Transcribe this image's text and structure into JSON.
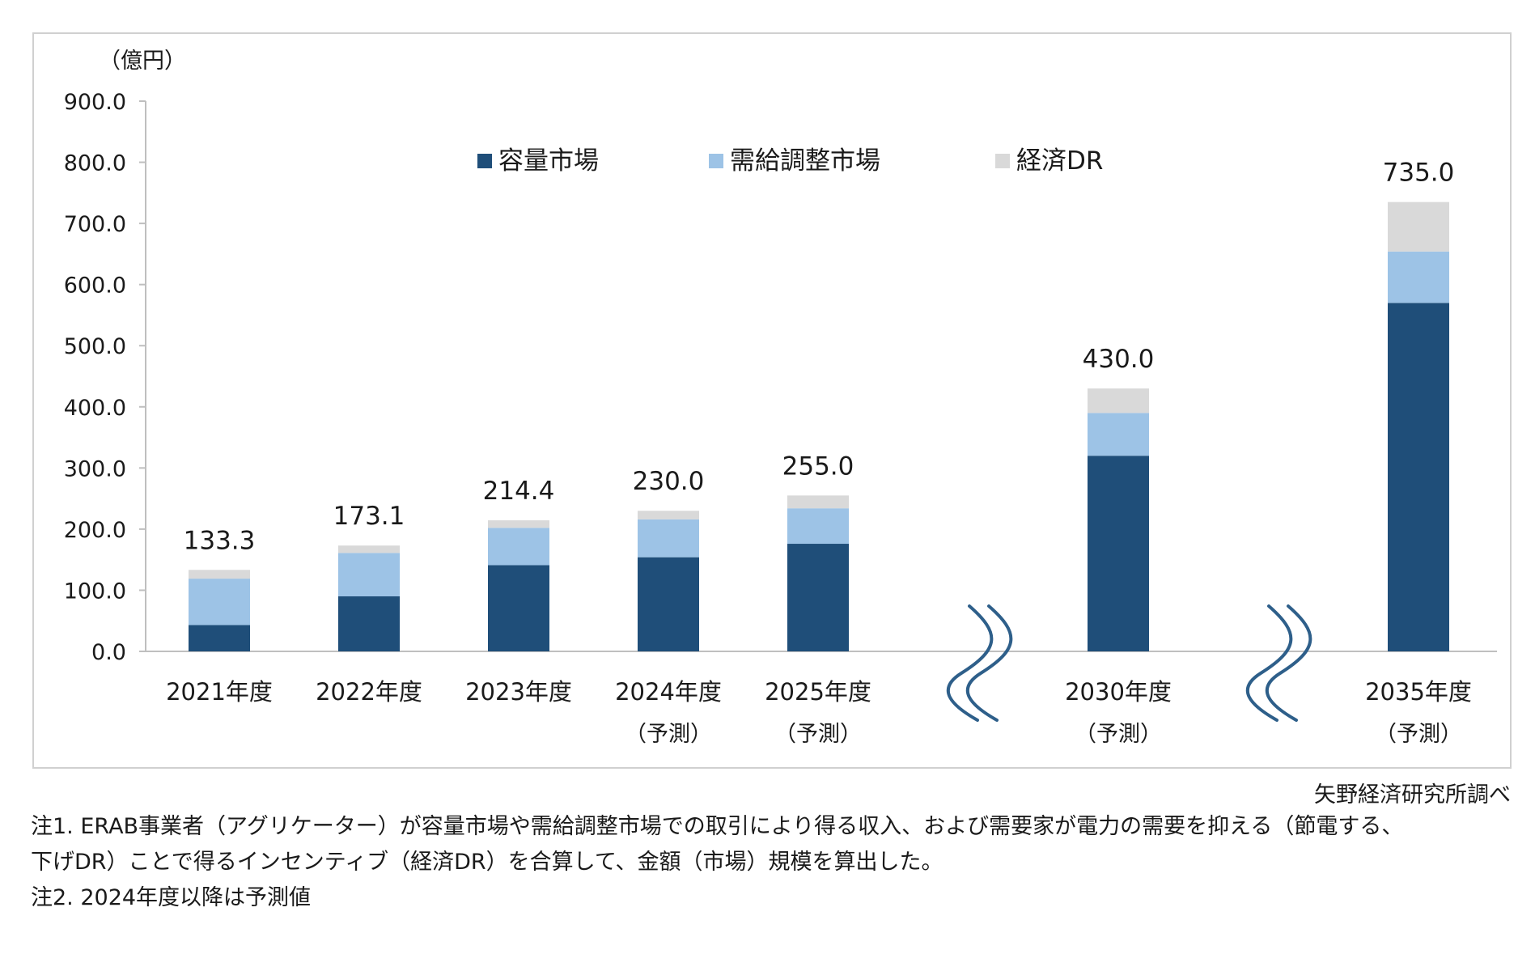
{
  "chart_data": {
    "type": "bar",
    "stacked": true,
    "unit": "（億円）",
    "categories": [
      "2021年度",
      "2022年度",
      "2023年度",
      "2024年度",
      "2025年度",
      "2030年度",
      "2035年度"
    ],
    "category_sublabels": [
      "",
      "",
      "",
      "（予測）",
      "（予測）",
      "（予測）",
      "（予測）"
    ],
    "series": [
      {
        "name": "容量市場",
        "color": "#1f4e79",
        "values": [
          43,
          90,
          141,
          154,
          176,
          320,
          570
        ]
      },
      {
        "name": "需給調整市場",
        "color": "#9dc3e6",
        "values": [
          76,
          71,
          61,
          62,
          58,
          70,
          84
        ]
      },
      {
        "name": "経済DR",
        "color": "#d9d9d9",
        "values": [
          14.3,
          12.1,
          12.4,
          14.0,
          21.0,
          40.0,
          81.0
        ]
      }
    ],
    "totals": [
      "133.3",
      "173.1",
      "214.4",
      "230.0",
      "255.0",
      "430.0",
      "735.0"
    ],
    "ylim": [
      0,
      900
    ],
    "yticks": [
      "0.0",
      "100.0",
      "200.0",
      "300.0",
      "400.0",
      "500.0",
      "600.0",
      "700.0",
      "800.0",
      "900.0"
    ],
    "axis_breaks_after": [
      "2025年度",
      "2030年度"
    ],
    "legend_position": "top"
  },
  "source": "矢野経済研究所調べ",
  "notes": [
    "注1. ERAB事業者（アグリケーター）が容量市場や需給調整市場での取引により得る収入、および需要家が電力の需要を抑える（節電する、",
    "下げDR）ことで得るインセンティブ（経済DR）を合算して、金額（市場）規模を算出した。",
    "注2. 2024年度以降は予測値"
  ]
}
